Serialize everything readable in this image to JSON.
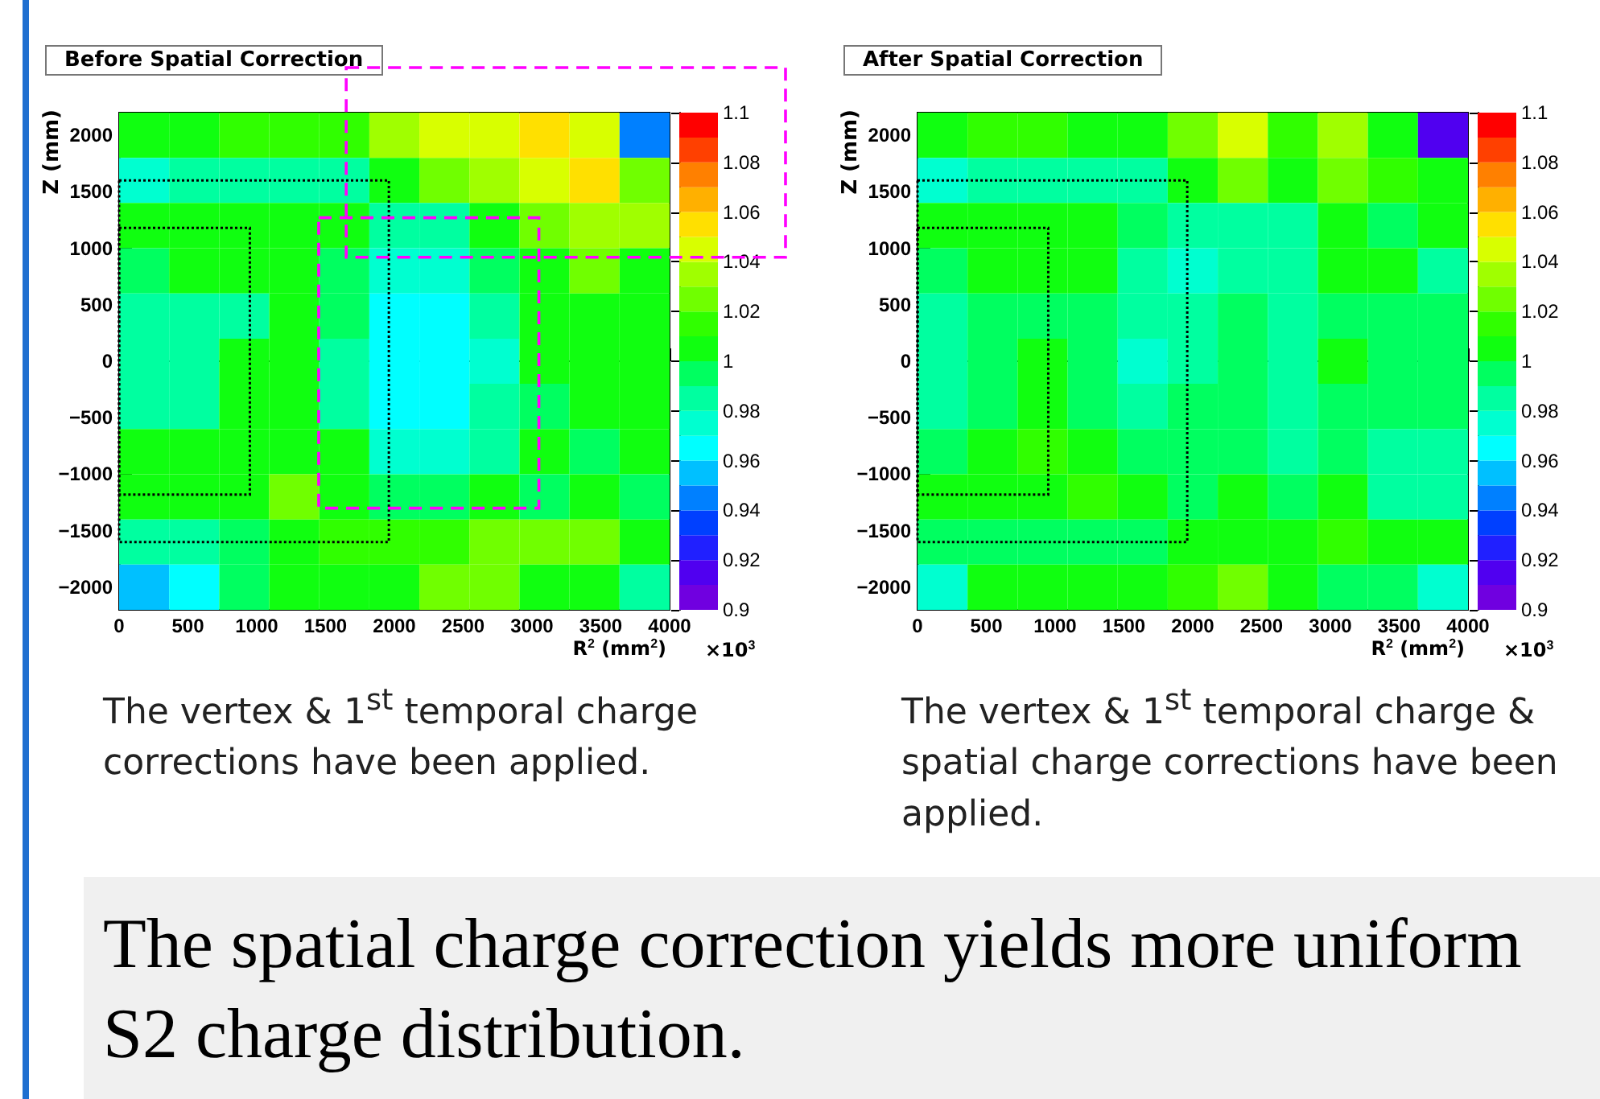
{
  "chart_data": [
    {
      "type": "heatmap",
      "title": "Before Spatial Correction",
      "xlabel": "R$^{2}$ (mm$^{2}$)",
      "ylabel": "Z (mm)",
      "xlim": [
        0,
        4000
      ],
      "xticks": [
        0,
        500,
        1000,
        1500,
        2000,
        2500,
        3000,
        3500,
        4000
      ],
      "ylim": [
        -2200,
        2200
      ],
      "yticks": [
        -2000,
        -1500,
        -1000,
        -500,
        0,
        500,
        1000,
        1500,
        2000
      ],
      "clim": [
        0.9,
        1.1
      ],
      "cticks": [
        0.9,
        0.92,
        0.94,
        0.96,
        0.98,
        1,
        1.02,
        1.04,
        1.06,
        1.08,
        1.1
      ],
      "cells": [
        [
          1.005,
          1.005,
          1.015,
          1.015,
          1.015,
          1.035,
          1.045,
          1.045,
          1.055,
          1.045,
          0.945
        ],
        [
          0.975,
          0.985,
          0.985,
          0.985,
          0.985,
          1.005,
          1.025,
          1.035,
          1.045,
          1.055,
          1.025
        ],
        [
          1.005,
          1.005,
          1.005,
          1.005,
          1.005,
          0.985,
          0.985,
          1.005,
          1.025,
          1.035,
          1.035
        ],
        [
          0.995,
          1.005,
          1.005,
          1.005,
          0.995,
          0.975,
          0.975,
          0.995,
          1.005,
          1.025,
          1.005
        ],
        [
          0.985,
          0.985,
          0.985,
          1.005,
          0.995,
          0.965,
          0.965,
          0.985,
          1.005,
          1.005,
          1.005
        ],
        [
          0.985,
          0.985,
          1.005,
          1.005,
          0.985,
          0.965,
          0.965,
          0.975,
          1.005,
          1.005,
          1.005
        ],
        [
          0.985,
          0.985,
          1.005,
          1.005,
          0.985,
          0.965,
          0.965,
          0.985,
          0.995,
          1.005,
          1.005
        ],
        [
          1.005,
          1.005,
          1.005,
          1.005,
          1.005,
          0.975,
          0.975,
          0.985,
          1.005,
          0.995,
          1.005
        ],
        [
          1.005,
          1.005,
          1.005,
          1.025,
          1.005,
          0.995,
          0.995,
          1.005,
          0.995,
          1.005,
          0.995
        ],
        [
          0.985,
          0.985,
          0.995,
          1.005,
          1.015,
          1.015,
          1.015,
          1.025,
          1.025,
          1.025,
          1.005
        ],
        [
          0.955,
          0.965,
          0.995,
          1.005,
          1.005,
          1.005,
          1.025,
          1.025,
          1.005,
          1.005,
          0.985
        ]
      ],
      "annotations": [
        "×10$^{3}$",
        "The vertex & 1$^{st}$ temporal charge corrections have been applied."
      ]
    },
    {
      "type": "heatmap",
      "title": "After Spatial Correction",
      "xlabel": "R$^{2}$ (mm$^{2}$)",
      "ylabel": "Z (mm)",
      "xlim": [
        0,
        4000
      ],
      "xticks": [
        0,
        500,
        1000,
        1500,
        2000,
        2500,
        3000,
        3500,
        4000
      ],
      "ylim": [
        -2200,
        2200
      ],
      "yticks": [
        -2000,
        -1500,
        -1000,
        -500,
        0,
        500,
        1000,
        1500,
        2000
      ],
      "clim": [
        0.9,
        1.1
      ],
      "cticks": [
        0.9,
        0.92,
        0.94,
        0.96,
        0.98,
        1,
        1.02,
        1.04,
        1.06,
        1.08,
        1.1
      ],
      "cells": [
        [
          1.005,
          1.015,
          1.015,
          1.005,
          1.005,
          1.025,
          1.045,
          1.015,
          1.035,
          1.005,
          0.915
        ],
        [
          0.975,
          0.985,
          0.985,
          0.985,
          0.985,
          1.005,
          1.025,
          1.005,
          1.025,
          1.015,
          1.005
        ],
        [
          1.005,
          1.005,
          1.005,
          1.005,
          0.995,
          0.985,
          0.985,
          0.985,
          1.005,
          0.995,
          1.005
        ],
        [
          0.995,
          1.005,
          1.005,
          1.005,
          0.985,
          0.975,
          0.985,
          0.985,
          1.005,
          1.005,
          0.985
        ],
        [
          0.985,
          0.995,
          0.995,
          0.995,
          0.985,
          0.985,
          0.995,
          0.985,
          0.995,
          0.995,
          0.995
        ],
        [
          0.985,
          0.995,
          1.005,
          0.995,
          0.975,
          0.985,
          0.995,
          0.985,
          1.005,
          0.995,
          0.995
        ],
        [
          0.985,
          0.995,
          1.005,
          0.995,
          0.985,
          0.995,
          0.995,
          0.985,
          0.995,
          0.995,
          0.995
        ],
        [
          0.995,
          1.005,
          1.015,
          1.005,
          0.995,
          0.995,
          0.995,
          0.985,
          0.995,
          0.985,
          0.985
        ],
        [
          1.005,
          1.005,
          1.005,
          1.015,
          1.005,
          0.995,
          1.005,
          0.995,
          1.005,
          0.985,
          0.985
        ],
        [
          0.995,
          0.995,
          0.995,
          0.995,
          0.995,
          1.005,
          1.005,
          1.005,
          1.015,
          1.005,
          1.005
        ],
        [
          0.975,
          1.005,
          1.005,
          1.005,
          1.005,
          1.015,
          1.025,
          1.005,
          0.995,
          0.995,
          0.975
        ]
      ],
      "annotations": [
        "×10$^{3}$",
        "The vertex & 1$^{st}$ temporal charge & spatial charge corrections have been applied.",
        "The spatial charge correction yields more uniform S2 charge distribution."
      ]
    }
  ]
}
